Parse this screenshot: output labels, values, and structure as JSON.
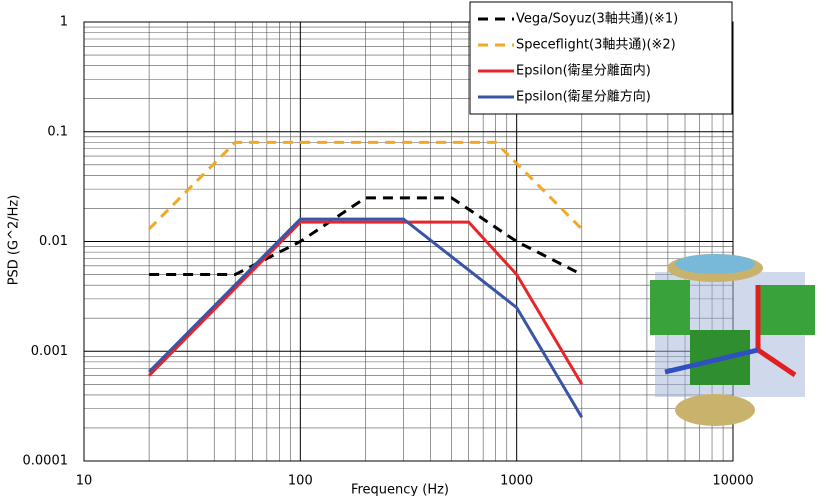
{
  "chart_data": {
    "type": "line",
    "x_label": "Frequency (Hz)",
    "y_label": "PSD (G^2/Hz)",
    "xlog": true,
    "ylog": true,
    "grid": true,
    "minor_grid": true,
    "legend": "top-right",
    "xlim": [
      10,
      10000
    ],
    "xticks": [
      10,
      100,
      1000,
      10000
    ],
    "ylim": [
      0.0001,
      1
    ],
    "yticks": [
      0.0001,
      0.001,
      0.01,
      0.1,
      1
    ],
    "series": [
      {
        "name": "Vega/Soyuz(3軸共通)(※1)",
        "color": "#000000",
        "dash": true,
        "x": [
          20,
          50,
          100,
          200,
          500,
          1000,
          2000
        ],
        "values": [
          0.005,
          0.005,
          0.01,
          0.025,
          0.025,
          0.01,
          0.005
        ]
      },
      {
        "name": "Speceflight(3軸共通)(※2)",
        "color": "#f5a623",
        "dash": true,
        "x": [
          20,
          50,
          800,
          2000
        ],
        "values": [
          0.013,
          0.08,
          0.08,
          0.013
        ]
      },
      {
        "name": "Epsilon(衛星分離面内)",
        "color": "#e8262a",
        "dash": false,
        "x": [
          20,
          100,
          600,
          1000,
          2000
        ],
        "values": [
          0.0006,
          0.015,
          0.015,
          0.005,
          0.0005
        ]
      },
      {
        "name": "Epsilon(衛星分離方向)",
        "color": "#3a55a8",
        "dash": false,
        "x": [
          20,
          100,
          300,
          1000,
          2000
        ],
        "values": [
          0.00065,
          0.016,
          0.016,
          0.0025,
          0.00025
        ]
      }
    ]
  }
}
